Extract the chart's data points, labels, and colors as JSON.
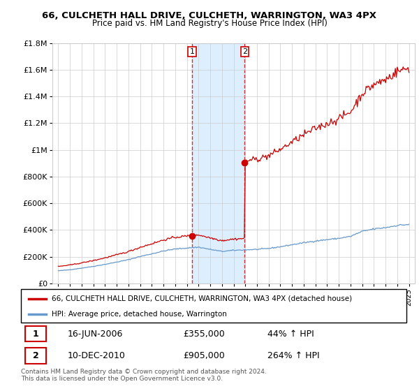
{
  "title": "66, CULCHETH HALL DRIVE, CULCHETH, WARRINGTON, WA3 4PX",
  "subtitle": "Price paid vs. HM Land Registry's House Price Index (HPI)",
  "legend_line1": "66, CULCHETH HALL DRIVE, CULCHETH, WARRINGTON, WA3 4PX (detached house)",
  "legend_line2": "HPI: Average price, detached house, Warrington",
  "footer": "Contains HM Land Registry data © Crown copyright and database right 2024.\nThis data is licensed under the Open Government Licence v3.0.",
  "transaction1_date": "16-JUN-2006",
  "transaction1_price": 355000,
  "transaction1_x": 2006.45,
  "transaction2_date": "10-DEC-2010",
  "transaction2_price": 905000,
  "transaction2_x": 2010.95,
  "ylim": [
    0,
    1800000
  ],
  "xlim_left": 1994.5,
  "xlim_right": 2025.5,
  "property_color": "#cc0000",
  "hpi_color": "#6699cc",
  "shade_color": "#ddeeff",
  "table_row1": [
    "1",
    "16-JUN-2006",
    "£355,000",
    "44% ↑ HPI"
  ],
  "table_row2": [
    "2",
    "10-DEC-2010",
    "£905,000",
    "264% ↑ HPI"
  ]
}
